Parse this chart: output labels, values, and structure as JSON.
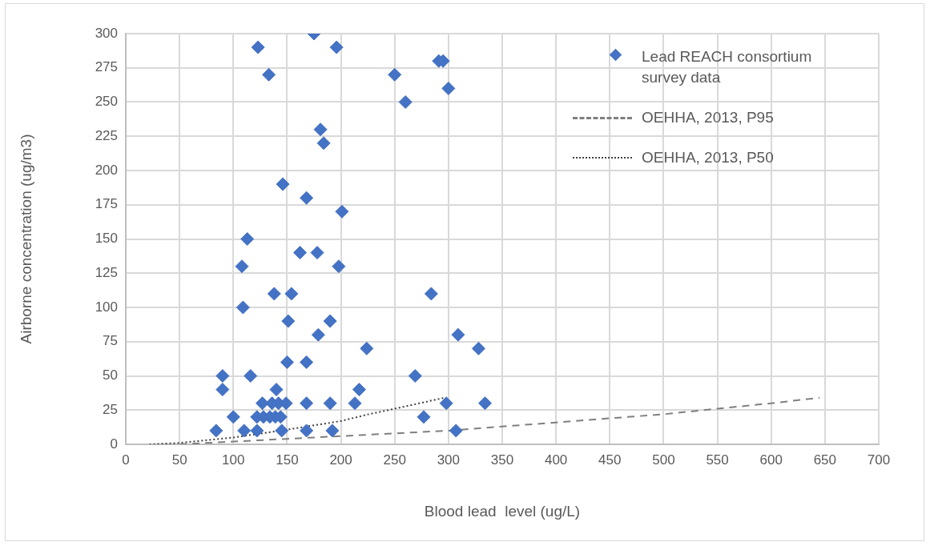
{
  "chart_data": {
    "type": "scatter",
    "xlabel": "Blood lead  level (ug/L)",
    "ylabel": "Airborne concentration (ug/m3)",
    "xlim": [
      0,
      700
    ],
    "xticks": [
      0,
      50,
      100,
      150,
      200,
      250,
      300,
      350,
      400,
      450,
      500,
      550,
      600,
      650,
      700
    ],
    "ylim": [
      0,
      300
    ],
    "yticks": [
      0,
      25,
      50,
      75,
      100,
      125,
      150,
      175,
      200,
      225,
      250,
      275,
      300
    ],
    "grid": true,
    "legend": "top right",
    "series": [
      {
        "name": "Lead REACH consortium survey data",
        "marker": "diamond",
        "color": "#4472c4",
        "x": [
          123,
          175,
          196,
          133,
          181,
          184,
          146,
          168,
          201,
          113,
          108,
          162,
          178,
          198,
          138,
          154,
          109,
          151,
          190,
          179,
          224,
          150,
          168,
          90,
          116,
          90,
          140,
          217,
          127,
          136,
          142,
          149,
          168,
          190,
          213,
          100,
          122,
          128,
          134,
          139,
          144,
          84,
          110,
          122,
          145,
          168,
          192,
          291,
          295,
          250,
          260,
          300,
          284,
          309,
          328,
          269,
          298,
          334,
          277,
          307
        ],
        "values": [
          290,
          300,
          290,
          270,
          230,
          220,
          190,
          180,
          170,
          150,
          130,
          140,
          140,
          130,
          110,
          110,
          100,
          90,
          90,
          80,
          70,
          60,
          60,
          50,
          50,
          40,
          40,
          40,
          30,
          30,
          30,
          30,
          30,
          30,
          30,
          20,
          20,
          20,
          20,
          20,
          20,
          10,
          10,
          10,
          10,
          10,
          10,
          280,
          280,
          270,
          250,
          260,
          110,
          80,
          70,
          50,
          30,
          30,
          20,
          10
        ]
      },
      {
        "name": "OEHHA, 2013, P95",
        "type": "line",
        "marker": "none",
        "line_style": "dashed",
        "color": "#7f7f7f",
        "x": [
          50,
          100,
          150,
          200,
          300,
          400,
          450,
          500,
          550,
          600,
          645
        ],
        "values": [
          0,
          2,
          4,
          6,
          10,
          16,
          19,
          22,
          26,
          30,
          34
        ]
      },
      {
        "name": "OEHHA, 2013, P50",
        "type": "line",
        "marker": "none",
        "line_style": "dotted",
        "color": "#404040",
        "x": [
          22,
          50,
          100,
          144,
          200,
          226,
          250,
          296
        ],
        "values": [
          0,
          1,
          5,
          10,
          17,
          22,
          26,
          34
        ]
      }
    ]
  }
}
